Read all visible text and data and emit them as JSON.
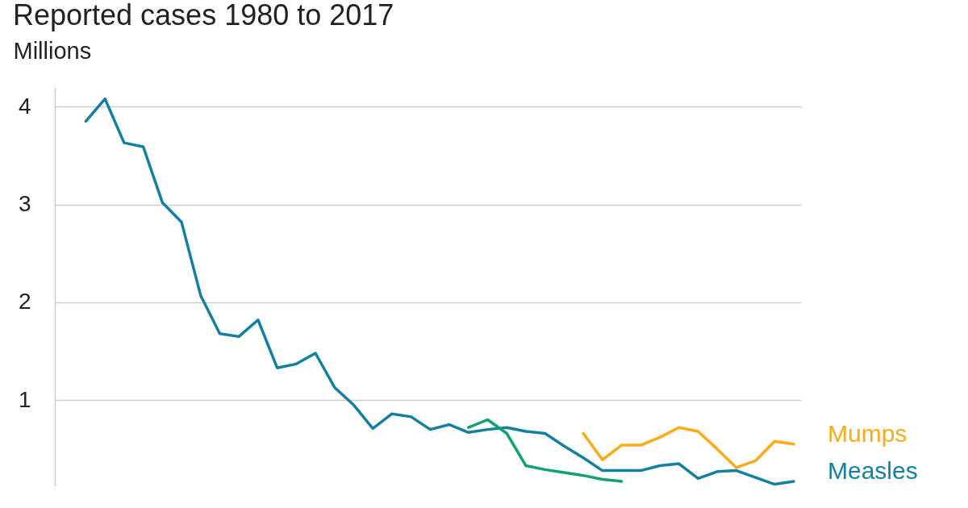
{
  "chart_data": {
    "type": "line",
    "title": "Reported cases 1980 to 2017",
    "ylabel": "Millions",
    "categories": [
      null,
      null,
      null,
      null,
      null,
      null,
      null,
      null,
      null,
      null,
      null,
      null,
      null,
      null,
      null,
      null,
      null,
      null,
      null,
      null,
      null,
      null,
      null,
      null,
      null,
      null,
      null,
      null,
      null,
      null,
      null,
      null,
      null,
      null,
      null,
      null,
      null,
      null
    ],
    "series": [
      {
        "name": "Measles",
        "color": "#1380a1",
        "values": [
          3.85,
          4.08,
          3.63,
          3.59,
          3.02,
          2.82,
          2.07,
          1.68,
          1.65,
          1.82,
          1.33,
          1.37,
          1.48,
          1.13,
          0.95,
          0.71,
          0.86,
          0.83,
          0.7,
          0.75,
          0.67,
          0.7,
          0.72,
          0.68,
          0.66,
          0.53,
          0.41,
          0.28,
          0.28,
          0.28,
          0.33,
          0.35,
          0.2,
          0.27,
          0.28,
          0.21,
          0.14,
          0.17
        ]
      },
      {
        "name": "Mumps",
        "color": "#faab18",
        "values": [
          null,
          null,
          null,
          null,
          null,
          null,
          null,
          null,
          null,
          null,
          null,
          null,
          null,
          null,
          null,
          null,
          null,
          null,
          null,
          null,
          null,
          null,
          null,
          null,
          null,
          null,
          0.66,
          0.39,
          0.54,
          0.54,
          0.62,
          0.72,
          0.68,
          0.5,
          0.31,
          0.38,
          0.58,
          0.55
        ]
      },
      {
        "color": "#12a26b",
        "values": [
          null,
          null,
          null,
          null,
          null,
          null,
          null,
          null,
          null,
          null,
          null,
          null,
          null,
          null,
          null,
          null,
          null,
          null,
          null,
          null,
          0.72,
          0.8,
          0.66,
          0.33,
          0.29,
          0.26,
          0.23,
          0.19,
          0.17,
          null,
          null,
          null,
          null,
          null,
          null,
          null,
          null,
          null
        ]
      }
    ],
    "ylim": [
      0.12,
      4.2
    ],
    "yticks": [
      1,
      2,
      3,
      4
    ],
    "grid": "y",
    "tick_labels": "y",
    "line_style": "solid"
  }
}
